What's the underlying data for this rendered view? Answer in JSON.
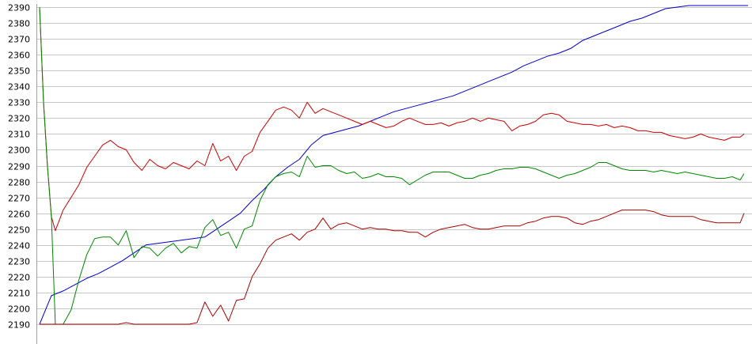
{
  "chart_data": {
    "type": "line",
    "title": "",
    "xlabel": "",
    "ylabel": "",
    "ylim": [
      2190,
      2390
    ],
    "xlim": [
      0,
      180
    ],
    "grid": true,
    "legend": "none",
    "y_ticks": [
      "2190",
      "2200",
      "2210",
      "2220",
      "2230",
      "2240",
      "2250",
      "2260",
      "2270",
      "2280",
      "2290",
      "2300",
      "2310",
      "2320",
      "2330",
      "2340",
      "2350",
      "2360",
      "2370",
      "2380",
      "2390"
    ],
    "series": [
      {
        "color": "#0000cc",
        "x": [
          0,
          3,
          6,
          9,
          12,
          15,
          18,
          21,
          24,
          27,
          30,
          33,
          36,
          39,
          42,
          45,
          48,
          51,
          54,
          57,
          60,
          63,
          66,
          69,
          72,
          75,
          78,
          81,
          84,
          87,
          90,
          93,
          96,
          99,
          102,
          105,
          108,
          111,
          114,
          117,
          120,
          123,
          126,
          129,
          132,
          135,
          138,
          141,
          144,
          147,
          150,
          153,
          156,
          159,
          162,
          165,
          168,
          171,
          174,
          177,
          180
        ],
        "values": [
          2190,
          2208,
          2211,
          2215,
          2219,
          2222,
          2226,
          2230,
          2235,
          2240,
          2241,
          2242,
          2243,
          2244,
          2245,
          2250,
          2255,
          2260,
          2268,
          2275,
          2283,
          2289,
          2294,
          2303,
          2309,
          2311,
          2313,
          2315,
          2318,
          2321,
          2324,
          2326,
          2328,
          2330,
          2332,
          2334,
          2337,
          2340,
          2343,
          2346,
          2349,
          2353,
          2356,
          2359,
          2361,
          2364,
          2369,
          2372,
          2375,
          2378,
          2381,
          2383,
          2386,
          2389,
          2390,
          2391,
          2392,
          2393,
          2394,
          2395,
          2396
        ]
      },
      {
        "color": "#cc0000",
        "x": [
          0,
          1,
          2,
          3,
          4,
          6,
          8,
          10,
          12,
          14,
          16,
          18,
          20,
          22,
          24,
          26,
          28,
          30,
          32,
          34,
          36,
          38,
          40,
          42,
          44,
          46,
          48,
          50,
          52,
          54,
          56,
          58,
          60,
          62,
          64,
          66,
          68,
          70,
          72,
          74,
          76,
          78,
          80,
          82,
          84,
          86,
          88,
          90,
          92,
          94,
          96,
          98,
          100,
          102,
          104,
          106,
          108,
          110,
          112,
          114,
          116,
          118,
          120,
          122,
          124,
          126,
          128,
          130,
          132,
          134,
          136,
          138,
          140,
          142,
          144,
          146,
          148,
          150,
          152,
          154,
          156,
          158,
          160,
          162,
          164,
          166,
          168,
          170,
          172,
          174,
          176,
          178,
          179
        ],
        "values": [
          2390,
          2330,
          2290,
          2258,
          2249,
          2262,
          2270,
          2278,
          2289,
          2296,
          2303,
          2306,
          2302,
          2300,
          2292,
          2287,
          2294,
          2290,
          2288,
          2292,
          2290,
          2288,
          2293,
          2290,
          2304,
          2293,
          2296,
          2287,
          2296,
          2299,
          2311,
          2318,
          2325,
          2327,
          2325,
          2320,
          2330,
          2323,
          2326,
          2324,
          2322,
          2320,
          2318,
          2316,
          2318,
          2316,
          2314,
          2315,
          2318,
          2320,
          2318,
          2316,
          2316,
          2317,
          2315,
          2317,
          2318,
          2320,
          2318,
          2320,
          2319,
          2318,
          2312,
          2315,
          2316,
          2318,
          2322,
          2323,
          2322,
          2318,
          2317,
          2316,
          2316,
          2315,
          2316,
          2314,
          2315,
          2314,
          2312,
          2312,
          2311,
          2311,
          2309,
          2308,
          2307,
          2308,
          2310,
          2308,
          2307,
          2306,
          2308,
          2308,
          2310
        ]
      },
      {
        "color": "#008800",
        "x": [
          0,
          1,
          2,
          3,
          4,
          6,
          8,
          10,
          12,
          14,
          16,
          18,
          20,
          22,
          24,
          26,
          28,
          30,
          32,
          34,
          36,
          38,
          40,
          42,
          44,
          46,
          48,
          50,
          52,
          54,
          56,
          58,
          60,
          62,
          64,
          66,
          68,
          70,
          72,
          74,
          76,
          78,
          80,
          82,
          84,
          86,
          88,
          90,
          92,
          94,
          96,
          98,
          100,
          102,
          104,
          106,
          108,
          110,
          112,
          114,
          116,
          118,
          120,
          122,
          124,
          126,
          128,
          130,
          132,
          134,
          136,
          138,
          140,
          142,
          144,
          146,
          148,
          150,
          152,
          154,
          156,
          158,
          160,
          162,
          164,
          166,
          168,
          170,
          172,
          174,
          176,
          178,
          179
        ],
        "values": [
          2390,
          2330,
          2290,
          2258,
          2190,
          2190,
          2199,
          2218,
          2234,
          2244,
          2245,
          2245,
          2240,
          2249,
          2232,
          2239,
          2238,
          2233,
          2238,
          2241,
          2235,
          2239,
          2238,
          2251,
          2256,
          2246,
          2248,
          2238,
          2250,
          2252,
          2268,
          2278,
          2283,
          2285,
          2286,
          2283,
          2296,
          2289,
          2290,
          2290,
          2287,
          2285,
          2286,
          2282,
          2283,
          2285,
          2283,
          2283,
          2282,
          2278,
          2281,
          2284,
          2286,
          2286,
          2286,
          2284,
          2282,
          2282,
          2284,
          2285,
          2287,
          2288,
          2288,
          2289,
          2289,
          2288,
          2286,
          2284,
          2282,
          2284,
          2285,
          2287,
          2289,
          2292,
          2292,
          2290,
          2288,
          2287,
          2287,
          2287,
          2286,
          2287,
          2286,
          2285,
          2286,
          2285,
          2284,
          2283,
          2282,
          2282,
          2283,
          2281,
          2285
        ]
      },
      {
        "color": "#aa0000",
        "x": [
          0,
          2,
          4,
          6,
          8,
          10,
          12,
          14,
          16,
          18,
          20,
          22,
          24,
          26,
          28,
          30,
          32,
          34,
          36,
          38,
          40,
          42,
          44,
          46,
          48,
          50,
          52,
          54,
          56,
          58,
          60,
          62,
          64,
          66,
          68,
          70,
          72,
          74,
          76,
          78,
          80,
          82,
          84,
          86,
          88,
          90,
          92,
          94,
          96,
          98,
          100,
          102,
          104,
          106,
          108,
          110,
          112,
          114,
          116,
          118,
          120,
          122,
          124,
          126,
          128,
          130,
          132,
          134,
          136,
          138,
          140,
          142,
          144,
          146,
          148,
          150,
          152,
          154,
          156,
          158,
          160,
          162,
          164,
          166,
          168,
          170,
          172,
          174,
          176,
          178,
          179
        ],
        "values": [
          2190,
          2190,
          2190,
          2190,
          2190,
          2190,
          2190,
          2190,
          2190,
          2190,
          2190,
          2191,
          2190,
          2190,
          2190,
          2190,
          2190,
          2190,
          2190,
          2190,
          2191,
          2204,
          2195,
          2202,
          2192,
          2205,
          2206,
          2220,
          2228,
          2238,
          2243,
          2245,
          2247,
          2243,
          2248,
          2250,
          2257,
          2250,
          2253,
          2254,
          2252,
          2250,
          2251,
          2250,
          2250,
          2249,
          2249,
          2248,
          2248,
          2245,
          2248,
          2250,
          2251,
          2252,
          2253,
          2251,
          2250,
          2250,
          2251,
          2252,
          2252,
          2252,
          2254,
          2255,
          2257,
          2258,
          2258,
          2257,
          2254,
          2253,
          2255,
          2256,
          2258,
          2260,
          2262,
          2262,
          2262,
          2262,
          2261,
          2259,
          2258,
          2258,
          2258,
          2258,
          2256,
          2255,
          2254,
          2254,
          2254,
          2254,
          2260
        ]
      }
    ]
  }
}
